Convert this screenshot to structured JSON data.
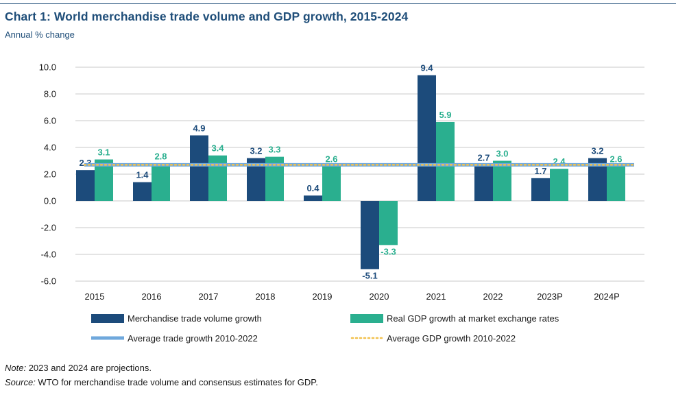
{
  "header": {
    "title": "Chart 1: World merchandise trade volume and GDP growth, 2015-2024",
    "subtitle": "Annual % change"
  },
  "colors": {
    "trade": "#1c4b7b",
    "gdp": "#2aaf8f",
    "avg_trade": "#6fa8dc",
    "avg_gdp": "#f2c14e",
    "title": "#1f4e79",
    "grid": "#c8c8c8"
  },
  "chart_data": {
    "type": "bar",
    "title": "Chart 1: World merchandise trade volume and GDP growth, 2015-2024",
    "subtitle": "Annual % change",
    "categories": [
      "2015",
      "2016",
      "2017",
      "2018",
      "2019",
      "2020",
      "2021",
      "2022",
      "2023P",
      "2024P"
    ],
    "series": [
      {
        "name": "Merchandise trade volume growth",
        "values": [
          2.3,
          1.4,
          4.9,
          3.2,
          0.4,
          -5.1,
          9.4,
          2.7,
          1.7,
          3.2
        ],
        "labels": [
          "2.3",
          "1.4",
          "4.9",
          "3.2",
          "0.4",
          "-5.1",
          "9.4",
          "2.7",
          "1.7",
          "3.2"
        ]
      },
      {
        "name": "Real GDP growth at market exchange rates",
        "values": [
          3.1,
          2.8,
          3.4,
          3.3,
          2.6,
          -3.3,
          5.9,
          3.0,
          2.4,
          2.6
        ],
        "labels": [
          "3.1",
          "2.8",
          "3.4",
          "3.3",
          "2.6",
          "-3.3",
          "5.9",
          "3.0",
          "2.4",
          "2.6"
        ]
      }
    ],
    "reference_lines": [
      {
        "name": "Average trade growth 2010-2022",
        "value": 2.7,
        "style": "solid"
      },
      {
        "name": "Average GDP growth 2010-2022",
        "value": 2.7,
        "style": "dotted"
      }
    ],
    "ylim": [
      -6,
      10
    ],
    "yticks": [
      10,
      8,
      6,
      4,
      2,
      0,
      -2,
      -4,
      -6
    ],
    "ytick_labels": [
      "10.0",
      "8.0",
      "6.0",
      "4.0",
      "2.0",
      "0.0",
      "-2.0",
      "-4.0",
      "-6.0"
    ],
    "grid": true,
    "legend": {
      "position": "bottom"
    }
  },
  "notes": {
    "note_label": "Note:",
    "note_text": " 2023 and 2024 are projections.",
    "source_label": "Source:",
    "source_text": " WTO for merchandise trade volume and consensus estimates for GDP."
  }
}
